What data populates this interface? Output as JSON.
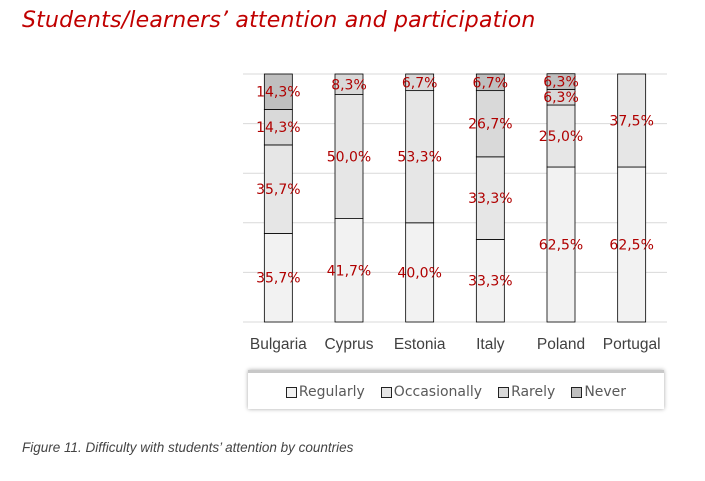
{
  "page": {
    "title": "Students/learners’ attention and participation",
    "caption": "Figure 11. Difficulty with students’ attention by countries"
  },
  "chart_data": {
    "type": "bar",
    "stacked": true,
    "categories": [
      "Bulgaria",
      "Cyprus",
      "Estonia",
      "Italy",
      "Poland",
      "Portugal"
    ],
    "series": [
      {
        "name": "Regularly",
        "values": [
          35.7,
          41.7,
          40.0,
          33.3,
          62.5,
          62.5
        ],
        "labels": [
          "35,7%",
          "41,7%",
          "40,0%",
          "33,3%",
          "62,5%",
          "62,5%"
        ],
        "color": "#f2f2f2"
      },
      {
        "name": "Occasionally",
        "values": [
          35.7,
          50.0,
          53.3,
          33.3,
          25.0,
          37.5
        ],
        "labels": [
          "35,7%",
          "50,0%",
          "53,3%",
          "33,3%",
          "25,0%",
          "37,5%"
        ],
        "color": "#e6e6e6"
      },
      {
        "name": "Rarely",
        "values": [
          14.3,
          8.3,
          6.7,
          26.7,
          6.3,
          0
        ],
        "labels": [
          "14,3%",
          "8,3%",
          "6,7%",
          "26,7%",
          "6,3%",
          ""
        ],
        "color": "#d9d9d9"
      },
      {
        "name": "Never",
        "values": [
          14.3,
          0,
          0,
          6.7,
          6.3,
          0
        ],
        "labels": [
          "14,3%",
          "",
          "",
          "6,7%",
          "6,3%",
          ""
        ],
        "color": "#bfbfbf"
      }
    ],
    "ylim": [
      0,
      100
    ],
    "grid": true,
    "legend_position": "bottom",
    "label_color": "#b00000"
  }
}
